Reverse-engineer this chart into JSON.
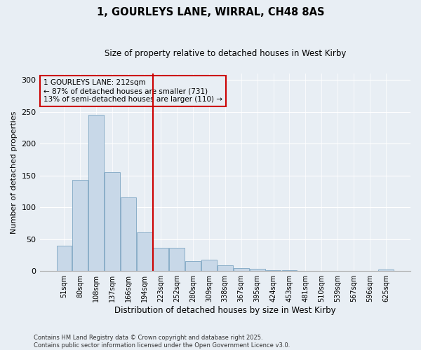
{
  "title_line1": "1, GOURLEYS LANE, WIRRAL, CH48 8AS",
  "title_line2": "Size of property relative to detached houses in West Kirby",
  "categories": [
    "51sqm",
    "80sqm",
    "108sqm",
    "137sqm",
    "166sqm",
    "194sqm",
    "223sqm",
    "252sqm",
    "280sqm",
    "309sqm",
    "338sqm",
    "367sqm",
    "395sqm",
    "424sqm",
    "453sqm",
    "481sqm",
    "510sqm",
    "539sqm",
    "567sqm",
    "596sqm",
    "625sqm"
  ],
  "values": [
    40,
    143,
    245,
    155,
    115,
    60,
    36,
    36,
    16,
    18,
    9,
    5,
    3,
    1,
    1,
    0,
    0,
    0,
    0,
    0,
    2
  ],
  "redline_index": 5.5,
  "bar_color": "#c8d8e8",
  "bar_edge_color": "#8aaec8",
  "highlight_color": "#cc0000",
  "ylabel": "Number of detached properties",
  "xlabel": "Distribution of detached houses by size in West Kirby",
  "ylim": [
    0,
    310
  ],
  "yticks": [
    0,
    50,
    100,
    150,
    200,
    250,
    300
  ],
  "annotation_text": "1 GOURLEYS LANE: 212sqm\n← 87% of detached houses are smaller (731)\n13% of semi-detached houses are larger (110) →",
  "footer_line1": "Contains HM Land Registry data © Crown copyright and database right 2025.",
  "footer_line2": "Contains public sector information licensed under the Open Government Licence v3.0.",
  "background_color": "#e8eef4",
  "grid_color": "#ffffff",
  "font_family": "DejaVu Sans"
}
